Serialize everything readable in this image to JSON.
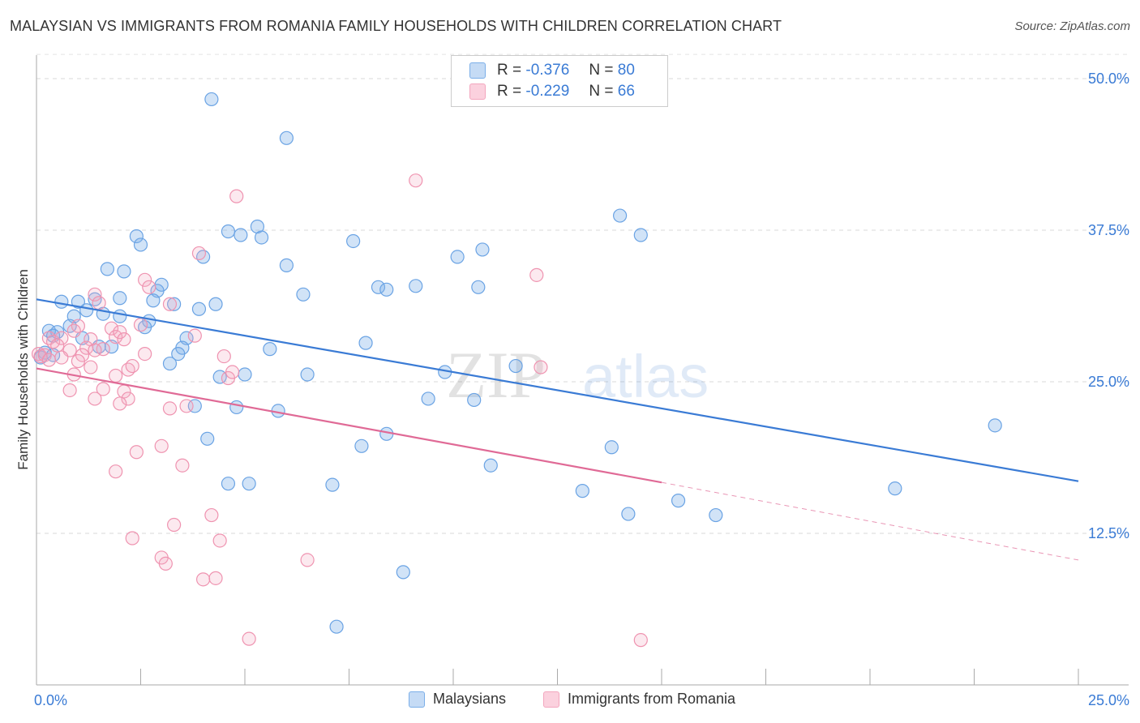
{
  "title": "MALAYSIAN VS IMMIGRANTS FROM ROMANIA FAMILY HOUSEHOLDS WITH CHILDREN CORRELATION CHART",
  "source": "Source: ZipAtlas.com",
  "watermark": {
    "zip": "ZIP",
    "atlas": "atlas"
  },
  "legend": {
    "rows": [
      {
        "r_label": "R =",
        "r_value": "-0.376",
        "n_label": "N =",
        "n_value": "80"
      },
      {
        "r_label": "R =",
        "r_value": "-0.229",
        "n_label": "N =",
        "n_value": "66"
      }
    ]
  },
  "chart_data": {
    "type": "scatter",
    "xlabel": "",
    "ylabel": "Family Households with Children",
    "xlim": [
      0,
      25
    ],
    "ylim": [
      2.5,
      52.5
    ],
    "x_tick_labels": [
      "0.0%",
      "25.0%"
    ],
    "y_ticks": [
      12.5,
      25.0,
      37.5,
      50.0
    ],
    "y_tick_labels": [
      "12.5%",
      "25.0%",
      "37.5%",
      "50.0%"
    ],
    "grid": true,
    "colors": {
      "malaysians": "#7baee8",
      "romania": "#f3a6be",
      "malaysians_line": "#3a7bd5",
      "romania_line": "#e06a96",
      "tick_text": "#3a7bd5"
    },
    "series": [
      {
        "name": "Malaysians",
        "color": "#7baee8",
        "trend": {
          "x0": 0,
          "y0": 31.8,
          "x1": 25,
          "y1": 16.8
        },
        "points": [
          [
            4.2,
            48.3
          ],
          [
            6.0,
            45.1
          ],
          [
            14.0,
            38.7
          ],
          [
            14.5,
            37.1
          ],
          [
            2.4,
            37.0
          ],
          [
            2.5,
            36.3
          ],
          [
            4.6,
            37.4
          ],
          [
            4.9,
            37.1
          ],
          [
            5.3,
            37.8
          ],
          [
            5.4,
            36.9
          ],
          [
            7.6,
            36.6
          ],
          [
            10.1,
            35.3
          ],
          [
            10.7,
            35.9
          ],
          [
            4.0,
            35.3
          ],
          [
            1.7,
            34.3
          ],
          [
            2.1,
            34.1
          ],
          [
            6.0,
            34.6
          ],
          [
            3.0,
            33.0
          ],
          [
            2.9,
            32.5
          ],
          [
            8.2,
            32.8
          ],
          [
            8.4,
            32.6
          ],
          [
            9.1,
            32.9
          ],
          [
            10.6,
            32.8
          ],
          [
            6.4,
            32.2
          ],
          [
            2.0,
            31.9
          ],
          [
            1.4,
            31.8
          ],
          [
            0.6,
            31.6
          ],
          [
            1.0,
            31.6
          ],
          [
            2.8,
            31.7
          ],
          [
            3.3,
            31.4
          ],
          [
            4.3,
            31.4
          ],
          [
            1.2,
            30.9
          ],
          [
            1.6,
            30.6
          ],
          [
            0.9,
            30.4
          ],
          [
            2.0,
            30.4
          ],
          [
            3.9,
            31.0
          ],
          [
            2.7,
            30.0
          ],
          [
            0.8,
            29.6
          ],
          [
            2.6,
            29.5
          ],
          [
            0.3,
            29.2
          ],
          [
            0.5,
            29.1
          ],
          [
            0.4,
            28.8
          ],
          [
            1.1,
            28.6
          ],
          [
            3.6,
            28.6
          ],
          [
            7.9,
            28.2
          ],
          [
            1.5,
            27.9
          ],
          [
            1.8,
            27.9
          ],
          [
            3.5,
            27.8
          ],
          [
            5.6,
            27.7
          ],
          [
            3.4,
            27.3
          ],
          [
            0.2,
            27.4
          ],
          [
            0.4,
            27.2
          ],
          [
            0.1,
            27.0
          ],
          [
            3.2,
            26.5
          ],
          [
            11.5,
            26.3
          ],
          [
            4.4,
            25.4
          ],
          [
            5.0,
            25.6
          ],
          [
            6.5,
            25.6
          ],
          [
            9.8,
            25.8
          ],
          [
            9.4,
            23.6
          ],
          [
            10.5,
            23.5
          ],
          [
            3.8,
            23.0
          ],
          [
            4.8,
            22.9
          ],
          [
            5.8,
            22.6
          ],
          [
            8.4,
            20.7
          ],
          [
            4.1,
            20.3
          ],
          [
            7.8,
            19.7
          ],
          [
            13.8,
            19.6
          ],
          [
            10.9,
            18.1
          ],
          [
            23.0,
            21.4
          ],
          [
            4.6,
            16.6
          ],
          [
            5.1,
            16.6
          ],
          [
            7.1,
            16.5
          ],
          [
            13.1,
            16.0
          ],
          [
            14.2,
            14.1
          ],
          [
            15.4,
            15.2
          ],
          [
            16.3,
            14.0
          ],
          [
            20.6,
            16.2
          ],
          [
            8.8,
            9.3
          ],
          [
            7.2,
            4.8
          ]
        ]
      },
      {
        "name": "Immigrants from Romania",
        "color": "#f3a6be",
        "trend": {
          "x0": 0,
          "y0": 26.1,
          "x1": 15,
          "y1": 16.7
        },
        "trend_dashed": {
          "x0": 15,
          "y0": 16.7,
          "x1": 25,
          "y1": 10.3
        },
        "points": [
          [
            9.1,
            41.6
          ],
          [
            4.8,
            40.3
          ],
          [
            3.9,
            35.6
          ],
          [
            12.0,
            33.8
          ],
          [
            2.6,
            33.4
          ],
          [
            2.7,
            32.8
          ],
          [
            1.4,
            32.2
          ],
          [
            1.5,
            31.5
          ],
          [
            3.2,
            31.4
          ],
          [
            1.8,
            29.4
          ],
          [
            1.0,
            29.6
          ],
          [
            0.9,
            29.2
          ],
          [
            2.5,
            29.7
          ],
          [
            0.3,
            28.6
          ],
          [
            0.4,
            28.3
          ],
          [
            0.6,
            28.6
          ],
          [
            1.3,
            28.5
          ],
          [
            1.9,
            28.7
          ],
          [
            2.0,
            29.1
          ],
          [
            0.5,
            28.0
          ],
          [
            0.8,
            27.6
          ],
          [
            1.2,
            27.8
          ],
          [
            1.6,
            27.7
          ],
          [
            2.1,
            28.5
          ],
          [
            3.8,
            28.8
          ],
          [
            0.05,
            27.3
          ],
          [
            0.1,
            27.1
          ],
          [
            0.2,
            27.2
          ],
          [
            0.3,
            26.8
          ],
          [
            0.6,
            27.0
          ],
          [
            1.1,
            27.2
          ],
          [
            1.4,
            27.6
          ],
          [
            2.6,
            27.3
          ],
          [
            4.5,
            27.1
          ],
          [
            1.0,
            26.7
          ],
          [
            1.3,
            26.2
          ],
          [
            2.2,
            26.0
          ],
          [
            2.3,
            26.3
          ],
          [
            4.6,
            25.3
          ],
          [
            4.7,
            25.8
          ],
          [
            0.9,
            25.6
          ],
          [
            1.9,
            25.5
          ],
          [
            12.1,
            26.2
          ],
          [
            0.8,
            24.3
          ],
          [
            1.6,
            24.4
          ],
          [
            2.1,
            24.2
          ],
          [
            1.4,
            23.6
          ],
          [
            2.2,
            23.6
          ],
          [
            2.0,
            23.2
          ],
          [
            3.2,
            22.8
          ],
          [
            3.6,
            23.0
          ],
          [
            3.0,
            19.7
          ],
          [
            2.4,
            19.2
          ],
          [
            3.5,
            18.1
          ],
          [
            1.9,
            17.6
          ],
          [
            4.2,
            14.0
          ],
          [
            3.3,
            13.2
          ],
          [
            2.3,
            12.1
          ],
          [
            4.4,
            11.9
          ],
          [
            3.0,
            10.5
          ],
          [
            3.1,
            10.0
          ],
          [
            6.5,
            10.3
          ],
          [
            4.0,
            8.7
          ],
          [
            4.3,
            8.8
          ],
          [
            5.1,
            3.8
          ],
          [
            14.5,
            3.7
          ]
        ]
      }
    ]
  },
  "bottom_legend": {
    "series1": "Malaysians",
    "series2": "Immigrants from Romania"
  }
}
